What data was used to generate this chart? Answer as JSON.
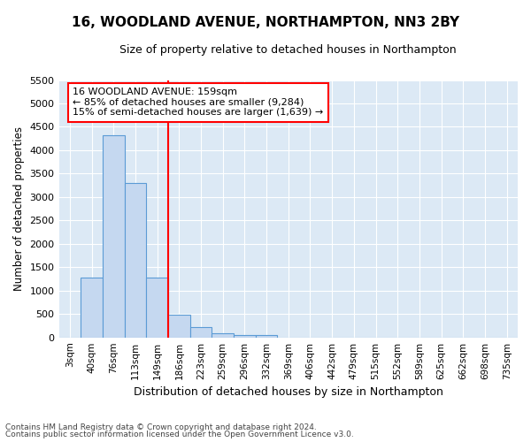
{
  "title": "16, WOODLAND AVENUE, NORTHAMPTON, NN3 2BY",
  "subtitle": "Size of property relative to detached houses in Northampton",
  "xlabel": "Distribution of detached houses by size in Northampton",
  "ylabel": "Number of detached properties",
  "bar_labels": [
    "3sqm",
    "40sqm",
    "76sqm",
    "113sqm",
    "149sqm",
    "186sqm",
    "223sqm",
    "259sqm",
    "296sqm",
    "332sqm",
    "369sqm",
    "406sqm",
    "442sqm",
    "479sqm",
    "515sqm",
    "552sqm",
    "589sqm",
    "625sqm",
    "662sqm",
    "698sqm",
    "735sqm"
  ],
  "bar_values": [
    0,
    1270,
    4320,
    3300,
    1270,
    480,
    220,
    90,
    60,
    50,
    0,
    0,
    0,
    0,
    0,
    0,
    0,
    0,
    0,
    0,
    0
  ],
  "bar_color": "#c5d8f0",
  "bar_edge_color": "#5b9bd5",
  "bar_edge_width": 0.8,
  "red_line_x": 4.5,
  "ylim": [
    0,
    5500
  ],
  "yticks": [
    0,
    500,
    1000,
    1500,
    2000,
    2500,
    3000,
    3500,
    4000,
    4500,
    5000,
    5500
  ],
  "annotation_text": "16 WOODLAND AVENUE: 159sqm\n← 85% of detached houses are smaller (9,284)\n15% of semi-detached houses are larger (1,639) →",
  "bg_color": "#ffffff",
  "plot_bg_color": "#dce9f5",
  "grid_color": "#ffffff",
  "footer_line1": "Contains HM Land Registry data © Crown copyright and database right 2024.",
  "footer_line2": "Contains public sector information licensed under the Open Government Licence v3.0."
}
